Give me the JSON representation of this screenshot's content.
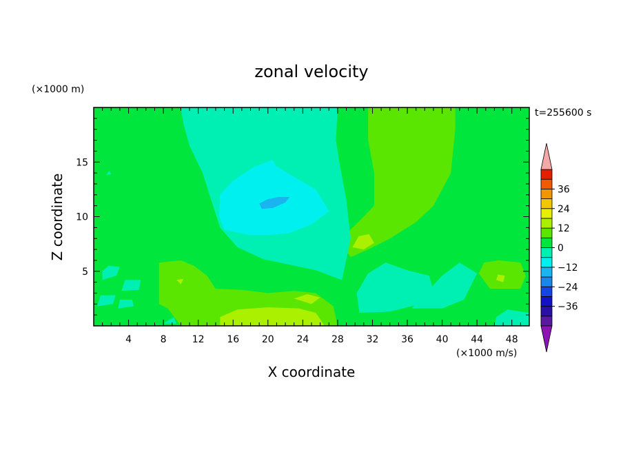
{
  "chart_data": {
    "type": "heatmap",
    "title": "zonal velocity",
    "xlabel": "X coordinate",
    "ylabel": "Z coordinate",
    "x_unit_label": "(×1000 m/s)",
    "y_unit_label": "(×1000 m)",
    "time_label": "t=255600 s",
    "xlim": [
      0,
      50
    ],
    "ylim": [
      0,
      20
    ],
    "x_ticks": [
      4,
      8,
      12,
      16,
      20,
      24,
      28,
      32,
      36,
      40,
      44,
      48
    ],
    "y_ticks": [
      5,
      10,
      15
    ],
    "colorbar": {
      "levels": [
        -42,
        -36,
        -30,
        -24,
        -18,
        -12,
        -6,
        0,
        6,
        12,
        18,
        24,
        30,
        36,
        42
      ],
      "tick_labels": [
        "36",
        "24",
        "12",
        "0",
        "−12",
        "−24",
        "−36"
      ],
      "tick_values": [
        36,
        24,
        12,
        0,
        -12,
        -24,
        -36
      ],
      "colors": [
        "#5a1aa0",
        "#2a10a6",
        "#1212c8",
        "#1446e4",
        "#1a86ec",
        "#1ab4f0",
        "#00f0f0",
        "#00f0b4",
        "#00e63c",
        "#5ae600",
        "#aaf000",
        "#e6f000",
        "#f0c800",
        "#f09600",
        "#f05a00",
        "#e61e00"
      ],
      "under_color": "#8c14b4",
      "over_color": "#f4a8a8"
    },
    "field_regions": [
      {
        "level": 0,
        "points": [
          [
            0,
            0
          ],
          [
            50,
            0
          ],
          [
            50,
            20
          ],
          [
            0,
            20
          ]
        ]
      },
      {
        "level": 6,
        "points": [
          [
            31.5,
            20
          ],
          [
            41.5,
            20
          ],
          [
            41.5,
            18
          ],
          [
            41,
            14
          ],
          [
            39,
            11
          ],
          [
            37,
            9.5
          ],
          [
            34,
            8
          ],
          [
            31.5,
            7
          ],
          [
            29.5,
            6.3
          ],
          [
            28.8,
            7
          ],
          [
            29.2,
            8.6
          ],
          [
            30.5,
            9.6
          ],
          [
            32.2,
            11
          ],
          [
            32.2,
            14
          ],
          [
            31.5,
            17
          ]
        ]
      },
      {
        "level": 12,
        "points": [
          [
            29.7,
            7.2
          ],
          [
            31,
            7
          ],
          [
            32.2,
            7.6
          ],
          [
            31.6,
            8.4
          ],
          [
            30.4,
            8.2
          ]
        ]
      },
      {
        "level": 6,
        "points": [
          [
            44.2,
            4.8
          ],
          [
            45.5,
            3.4
          ],
          [
            49,
            3.4
          ],
          [
            49.6,
            4.6
          ],
          [
            49,
            5.8
          ],
          [
            46.5,
            6
          ],
          [
            44.8,
            5.8
          ]
        ]
      },
      {
        "level": 12,
        "points": [
          [
            46.2,
            4.2
          ],
          [
            47,
            4
          ],
          [
            47.2,
            4.6
          ],
          [
            46.4,
            4.7
          ]
        ]
      },
      {
        "level": 6,
        "points": [
          [
            7.5,
            2
          ],
          [
            7.5,
            5.8
          ],
          [
            10,
            6
          ],
          [
            11.5,
            5.5
          ],
          [
            13,
            4.6
          ],
          [
            14,
            3.4
          ],
          [
            17,
            3.3
          ],
          [
            20,
            3
          ],
          [
            23,
            3.2
          ],
          [
            25.5,
            3
          ],
          [
            27.5,
            1.8
          ],
          [
            28,
            0
          ],
          [
            10,
            0
          ],
          [
            8.5,
            1.6
          ]
        ]
      },
      {
        "level": 12,
        "points": [
          [
            14.5,
            0
          ],
          [
            14.5,
            0.8
          ],
          [
            16.5,
            1.5
          ],
          [
            20,
            1.7
          ],
          [
            23.5,
            1.6
          ],
          [
            25.5,
            1.2
          ],
          [
            26.5,
            0
          ]
        ]
      },
      {
        "level": 12,
        "points": [
          [
            23,
            2.5
          ],
          [
            24.5,
            2.9
          ],
          [
            26,
            2.6
          ],
          [
            25,
            2
          ]
        ]
      },
      {
        "level": 12,
        "points": [
          [
            9.5,
            4.2
          ],
          [
            10.3,
            4.3
          ],
          [
            10,
            3.8
          ]
        ]
      },
      {
        "level": -6,
        "points": [
          [
            10,
            20
          ],
          [
            28,
            20
          ],
          [
            27.8,
            17
          ],
          [
            28.2,
            15
          ],
          [
            29,
            11.5
          ],
          [
            29.5,
            8
          ],
          [
            28.5,
            4.2
          ],
          [
            25.5,
            5.1
          ],
          [
            22.5,
            5.6
          ],
          [
            19.5,
            6.1
          ],
          [
            16.5,
            7.2
          ],
          [
            14.5,
            9
          ],
          [
            13.5,
            11.5
          ],
          [
            12.5,
            14
          ],
          [
            11,
            16.5
          ],
          [
            10.3,
            18.5
          ]
        ]
      },
      {
        "level": -12,
        "points": [
          [
            14.5,
            12
          ],
          [
            16,
            13.3
          ],
          [
            18.5,
            14.6
          ],
          [
            20.5,
            15.2
          ],
          [
            21,
            14.6
          ],
          [
            23.5,
            13.4
          ],
          [
            25.5,
            12.5
          ],
          [
            27,
            10.5
          ],
          [
            25,
            9.3
          ],
          [
            22.5,
            8.5
          ],
          [
            20,
            8.3
          ],
          [
            18,
            8.3
          ],
          [
            15,
            8.8
          ],
          [
            14.4,
            10
          ]
        ]
      },
      {
        "level": -18,
        "points": [
          [
            19,
            11.2
          ],
          [
            20,
            11.6
          ],
          [
            21.2,
            11.8
          ],
          [
            22.5,
            11.8
          ],
          [
            22,
            11.3
          ],
          [
            20.6,
            10.8
          ],
          [
            19.3,
            10.7
          ]
        ]
      },
      {
        "level": -6,
        "points": [
          [
            30.5,
            1.2
          ],
          [
            30.2,
            3
          ],
          [
            31.5,
            4.8
          ],
          [
            33.5,
            5.8
          ],
          [
            36,
            5.1
          ],
          [
            38.5,
            4.6
          ],
          [
            39,
            3.2
          ],
          [
            37.5,
            2
          ],
          [
            34,
            1.3
          ]
        ]
      },
      {
        "level": -6,
        "points": [
          [
            36.5,
            1.6
          ],
          [
            40,
            1.6
          ],
          [
            42.5,
            2.4
          ],
          [
            44,
            4.8
          ],
          [
            42,
            5.8
          ],
          [
            40,
            4.6
          ]
        ]
      },
      {
        "level": -6,
        "points": [
          [
            46,
            0
          ],
          [
            50,
            0
          ],
          [
            50,
            1.2
          ],
          [
            47.5,
            1.5
          ],
          [
            46.2,
            0.8
          ]
        ]
      },
      {
        "level": -6,
        "points": [
          [
            1,
            4.2
          ],
          [
            2.6,
            4.6
          ],
          [
            3,
            5.4
          ],
          [
            1.7,
            5.5
          ],
          [
            1,
            5
          ]
        ]
      },
      {
        "level": -6,
        "points": [
          [
            3.2,
            3.2
          ],
          [
            5.2,
            3.3
          ],
          [
            5.4,
            4.2
          ],
          [
            3.6,
            4.2
          ]
        ]
      },
      {
        "level": -6,
        "points": [
          [
            0.4,
            1.8
          ],
          [
            2.2,
            2
          ],
          [
            2.5,
            2.8
          ],
          [
            0.8,
            2.8
          ]
        ]
      },
      {
        "level": -6,
        "points": [
          [
            2.8,
            1.6
          ],
          [
            4.6,
            1.8
          ],
          [
            4.4,
            2.4
          ],
          [
            3,
            2.4
          ]
        ]
      },
      {
        "level": -6,
        "points": [
          [
            8,
            0.2
          ],
          [
            9.5,
            0.2
          ],
          [
            9.2,
            0.8
          ]
        ]
      },
      {
        "level": -6,
        "points": [
          [
            1.4,
            13.8
          ],
          [
            2,
            13.9
          ],
          [
            1.8,
            14.2
          ]
        ]
      }
    ]
  }
}
